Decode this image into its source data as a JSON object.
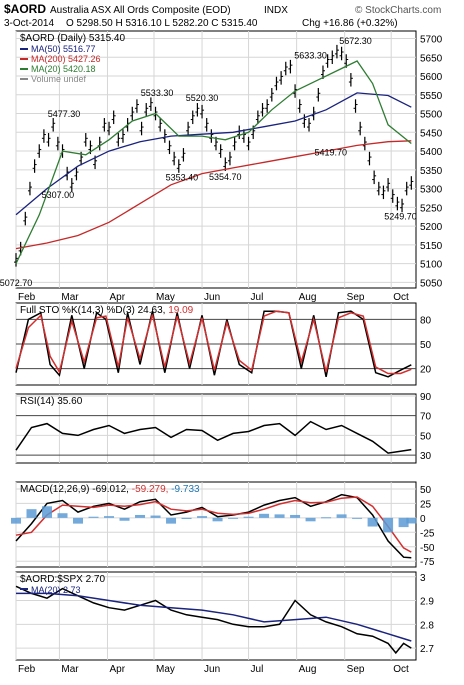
{
  "header": {
    "symbol": "$AORD",
    "name": "Australia ASX All Ords Composite (EOD)",
    "exchange": "INDX",
    "date": "3-Oct-2014",
    "ohlc": "O 5298.50  H 5316.10  L 5282.20  C 5315.40",
    "change": "Chg +16.86 (+0.32%)",
    "watermark": "© StockCharts.com"
  },
  "chart_data": [
    {
      "type": "line",
      "panel": "price",
      "title": "$AORD (Daily) 5315.40",
      "legend": [
        {
          "label": "MA(50) 5516.77",
          "color": "#1a237e"
        },
        {
          "label": "MA(200) 5427.26",
          "color": "#c62828"
        },
        {
          "label": "MA(20) 5420.18",
          "color": "#2e7d32"
        },
        {
          "label": "Volume undef",
          "color": "#888888"
        }
      ],
      "x_labels": [
        "Feb",
        "Mar",
        "Apr",
        "May",
        "Jun",
        "Jul",
        "Aug",
        "Sep",
        "Oct"
      ],
      "x_label_days": [
        0,
        28,
        59,
        89,
        120,
        150,
        181,
        212,
        242
      ],
      "yticks": [
        5050,
        5100,
        5150,
        5200,
        5250,
        5300,
        5350,
        5400,
        5450,
        5500,
        5550,
        5600,
        5650,
        5700
      ],
      "ylim": [
        5035,
        5720
      ],
      "annotations": [
        {
          "text": "5072.70",
          "x": 0,
          "y": 5072.7,
          "pos": "below"
        },
        {
          "text": "5307.00",
          "x": 27,
          "y": 5307,
          "pos": "below"
        },
        {
          "text": "5477.30",
          "x": 31,
          "y": 5477.3,
          "pos": "above"
        },
        {
          "text": "5533.30",
          "x": 91,
          "y": 5533.3,
          "pos": "above"
        },
        {
          "text": "5520.30",
          "x": 120,
          "y": 5520.3,
          "pos": "above"
        },
        {
          "text": "5353.40",
          "x": 107,
          "y": 5353.4,
          "pos": "below"
        },
        {
          "text": "5354.70",
          "x": 135,
          "y": 5354.7,
          "pos": "below"
        },
        {
          "text": "5633.30",
          "x": 190,
          "y": 5633.3,
          "pos": "above"
        },
        {
          "text": "5672.30",
          "x": 219,
          "y": 5672.3,
          "pos": "above"
        },
        {
          "text": "5419.70",
          "x": 203,
          "y": 5419.7,
          "pos": "below"
        },
        {
          "text": "5249.70",
          "x": 248,
          "y": 5249.7,
          "pos": "below"
        }
      ],
      "series": [
        {
          "name": "$AORD",
          "style": "ohlc",
          "color": "#000000",
          "x": [
            0,
            3,
            6,
            9,
            12,
            15,
            18,
            21,
            24,
            27,
            30,
            33,
            36,
            39,
            42,
            45,
            48,
            51,
            54,
            57,
            60,
            63,
            66,
            69,
            72,
            75,
            78,
            81,
            84,
            87,
            90,
            93,
            96,
            99,
            102,
            105,
            108,
            111,
            114,
            117,
            120,
            123,
            126,
            129,
            132,
            135,
            138,
            141,
            144,
            147,
            150,
            153,
            156,
            159,
            162,
            165,
            168,
            171,
            174,
            177,
            180,
            183,
            186,
            189,
            192,
            195,
            198,
            201,
            204,
            207,
            210,
            213,
            216,
            219,
            222,
            225,
            228,
            231,
            234,
            237,
            240,
            243,
            246,
            249,
            252,
            255
          ],
          "y": [
            5110,
            5140,
            5220,
            5300,
            5360,
            5400,
            5440,
            5430,
            5470,
            5420,
            5400,
            5340,
            5310,
            5340,
            5380,
            5430,
            5410,
            5370,
            5420,
            5470,
            5460,
            5490,
            5430,
            5440,
            5470,
            5500,
            5520,
            5460,
            5510,
            5525,
            5500,
            5470,
            5440,
            5410,
            5380,
            5360,
            5390,
            5460,
            5490,
            5510,
            5505,
            5470,
            5440,
            5420,
            5400,
            5365,
            5380,
            5420,
            5450,
            5440,
            5420,
            5450,
            5490,
            5510,
            5520,
            5550,
            5580,
            5595,
            5620,
            5625,
            5560,
            5520,
            5480,
            5470,
            5500,
            5550,
            5610,
            5640,
            5650,
            5665,
            5660,
            5640,
            5590,
            5520,
            5460,
            5420,
            5380,
            5330,
            5300,
            5290,
            5310,
            5280,
            5260,
            5255,
            5300,
            5315
          ]
        },
        {
          "name": "MA(50)",
          "color": "#1a237e",
          "x": [
            0,
            20,
            40,
            60,
            80,
            100,
            120,
            140,
            160,
            180,
            200,
            220,
            240,
            255
          ],
          "y": [
            5230,
            5300,
            5360,
            5400,
            5425,
            5440,
            5445,
            5450,
            5465,
            5480,
            5510,
            5555,
            5548,
            5516.77
          ]
        },
        {
          "name": "MA(200)",
          "color": "#c62828",
          "x": [
            0,
            20,
            40,
            60,
            80,
            100,
            120,
            140,
            160,
            180,
            200,
            220,
            240,
            255
          ],
          "y": [
            5140,
            5155,
            5175,
            5210,
            5260,
            5310,
            5340,
            5355,
            5370,
            5385,
            5400,
            5415,
            5425,
            5427.26
          ]
        },
        {
          "name": "MA(20)",
          "color": "#2e7d32",
          "x": [
            0,
            15,
            30,
            45,
            60,
            75,
            90,
            105,
            120,
            135,
            150,
            165,
            180,
            195,
            210,
            220,
            230,
            240,
            255
          ],
          "y": [
            5100,
            5230,
            5400,
            5390,
            5430,
            5480,
            5500,
            5440,
            5440,
            5430,
            5450,
            5510,
            5560,
            5590,
            5620,
            5640,
            5580,
            5470,
            5420.18
          ]
        }
      ]
    },
    {
      "type": "line",
      "panel": "stochastic",
      "title": "Full STO %K(14,3) %D(3) 24.63, 19.09",
      "title_parts": [
        "Full STO %K(14,3) %D(3)",
        "24.63",
        "19.09"
      ],
      "ylim": [
        0,
        100
      ],
      "yticks": [
        20,
        50,
        80
      ],
      "reference_lines": [
        20,
        50,
        80
      ],
      "series": [
        {
          "name": "%K",
          "color": "#000000",
          "x": [
            0,
            8,
            16,
            22,
            28,
            36,
            44,
            52,
            58,
            66,
            72,
            80,
            88,
            96,
            104,
            112,
            120,
            128,
            136,
            144,
            152,
            160,
            168,
            176,
            184,
            192,
            200,
            208,
            216,
            224,
            232,
            240,
            248,
            255
          ],
          "y": [
            15,
            80,
            88,
            25,
            12,
            85,
            20,
            88,
            80,
            15,
            88,
            25,
            90,
            15,
            88,
            20,
            85,
            12,
            80,
            25,
            15,
            90,
            90,
            88,
            20,
            85,
            10,
            88,
            90,
            80,
            15,
            10,
            18,
            24.63
          ]
        },
        {
          "name": "%D",
          "color": "#d32f2f",
          "x": [
            0,
            8,
            16,
            22,
            28,
            36,
            44,
            52,
            58,
            66,
            72,
            80,
            88,
            96,
            104,
            112,
            120,
            128,
            136,
            144,
            152,
            160,
            168,
            176,
            184,
            192,
            200,
            208,
            216,
            224,
            232,
            240,
            248,
            255
          ],
          "y": [
            20,
            70,
            85,
            35,
            16,
            78,
            28,
            82,
            84,
            22,
            82,
            32,
            86,
            22,
            84,
            26,
            82,
            18,
            76,
            30,
            18,
            84,
            90,
            88,
            28,
            80,
            16,
            82,
            88,
            84,
            22,
            14,
            14,
            19.09
          ]
        }
      ]
    },
    {
      "type": "line",
      "panel": "rsi",
      "title": "RSI(14) 35.60",
      "ylim": [
        22,
        92
      ],
      "yticks": [
        30,
        50,
        70,
        90
      ],
      "reference_lines": [
        30,
        70
      ],
      "series": [
        {
          "name": "RSI(14)",
          "color": "#000000",
          "x": [
            0,
            10,
            20,
            30,
            40,
            50,
            60,
            70,
            80,
            90,
            100,
            110,
            120,
            130,
            140,
            150,
            160,
            170,
            180,
            190,
            200,
            210,
            220,
            230,
            240,
            248,
            255
          ],
          "y": [
            35,
            58,
            62,
            52,
            50,
            56,
            60,
            52,
            56,
            58,
            48,
            56,
            55,
            45,
            52,
            54,
            60,
            62,
            50,
            64,
            56,
            60,
            52,
            44,
            32,
            34,
            35.6
          ]
        }
      ]
    },
    {
      "type": "bar",
      "panel": "macd",
      "title": "MACD(12,26,9) -69.012, -59.279, -9.733",
      "title_parts": [
        "MACD(12,26,9)",
        "-69.012",
        "-59.279",
        "-9.733"
      ],
      "ylim": [
        -85,
        62
      ],
      "yticks": [
        -75,
        -50,
        -25,
        0,
        25,
        50
      ],
      "series": [
        {
          "name": "MACD",
          "style": "line",
          "color": "#000000",
          "x": [
            0,
            10,
            20,
            30,
            40,
            50,
            60,
            70,
            80,
            90,
            100,
            110,
            120,
            130,
            140,
            150,
            160,
            170,
            180,
            190,
            200,
            210,
            220,
            230,
            240,
            250,
            255
          ],
          "y": [
            -40,
            -10,
            25,
            30,
            10,
            20,
            25,
            15,
            28,
            32,
            5,
            10,
            18,
            2,
            5,
            10,
            22,
            30,
            35,
            20,
            28,
            40,
            35,
            5,
            -40,
            -68,
            -69.012
          ]
        },
        {
          "name": "Signal",
          "style": "line",
          "color": "#d32f2f",
          "x": [
            0,
            10,
            20,
            30,
            40,
            50,
            60,
            70,
            80,
            90,
            100,
            110,
            120,
            130,
            140,
            150,
            160,
            170,
            180,
            190,
            200,
            210,
            220,
            230,
            240,
            250,
            255
          ],
          "y": [
            -30,
            -25,
            5,
            22,
            20,
            18,
            22,
            20,
            23,
            28,
            15,
            12,
            15,
            8,
            6,
            8,
            15,
            24,
            30,
            26,
            27,
            34,
            36,
            20,
            -15,
            -52,
            -59.279
          ]
        },
        {
          "name": "Histogram",
          "style": "bars",
          "color": "#5b9bd5",
          "x": [
            0,
            10,
            20,
            30,
            40,
            50,
            60,
            70,
            80,
            90,
            100,
            110,
            120,
            130,
            140,
            150,
            160,
            170,
            180,
            190,
            200,
            210,
            220,
            230,
            240,
            250,
            255
          ],
          "y": [
            -10,
            15,
            20,
            8,
            -10,
            2,
            3,
            -5,
            5,
            4,
            -10,
            -2,
            3,
            -6,
            -1,
            2,
            7,
            6,
            5,
            -6,
            1,
            6,
            -1,
            -15,
            -25,
            -16,
            -9.733
          ]
        }
      ]
    },
    {
      "type": "line",
      "panel": "ratio",
      "title": "$AORD:$SPX 2.70",
      "legend": [
        {
          "label": "MA(20) 2.73",
          "color": "#1a237e"
        }
      ],
      "ylim": [
        2.65,
        3.02
      ],
      "yticks": [
        2.7,
        2.8,
        2.9,
        3.0
      ],
      "x_labels": [
        "Feb",
        "Mar",
        "Apr",
        "May",
        "Jun",
        "Jul",
        "Aug",
        "Sep",
        "Oct"
      ],
      "x_label_days": [
        0,
        28,
        59,
        89,
        120,
        150,
        181,
        212,
        242
      ],
      "series": [
        {
          "name": "$AORD:$SPX",
          "color": "#000000",
          "x": [
            0,
            10,
            20,
            30,
            40,
            50,
            60,
            70,
            80,
            90,
            100,
            110,
            120,
            130,
            140,
            150,
            160,
            170,
            180,
            190,
            200,
            210,
            220,
            230,
            240,
            245,
            250,
            255
          ],
          "y": [
            2.96,
            2.93,
            2.91,
            2.95,
            2.92,
            2.89,
            2.87,
            2.86,
            2.88,
            2.9,
            2.86,
            2.84,
            2.83,
            2.82,
            2.8,
            2.79,
            2.79,
            2.8,
            2.9,
            2.84,
            2.81,
            2.79,
            2.76,
            2.75,
            2.72,
            2.68,
            2.72,
            2.7
          ]
        },
        {
          "name": "MA(20)",
          "color": "#1a237e",
          "x": [
            0,
            20,
            40,
            60,
            80,
            100,
            120,
            140,
            160,
            180,
            200,
            220,
            240,
            255
          ],
          "y": [
            2.93,
            2.93,
            2.92,
            2.9,
            2.88,
            2.87,
            2.86,
            2.84,
            2.81,
            2.82,
            2.83,
            2.8,
            2.76,
            2.73
          ]
        }
      ]
    }
  ]
}
